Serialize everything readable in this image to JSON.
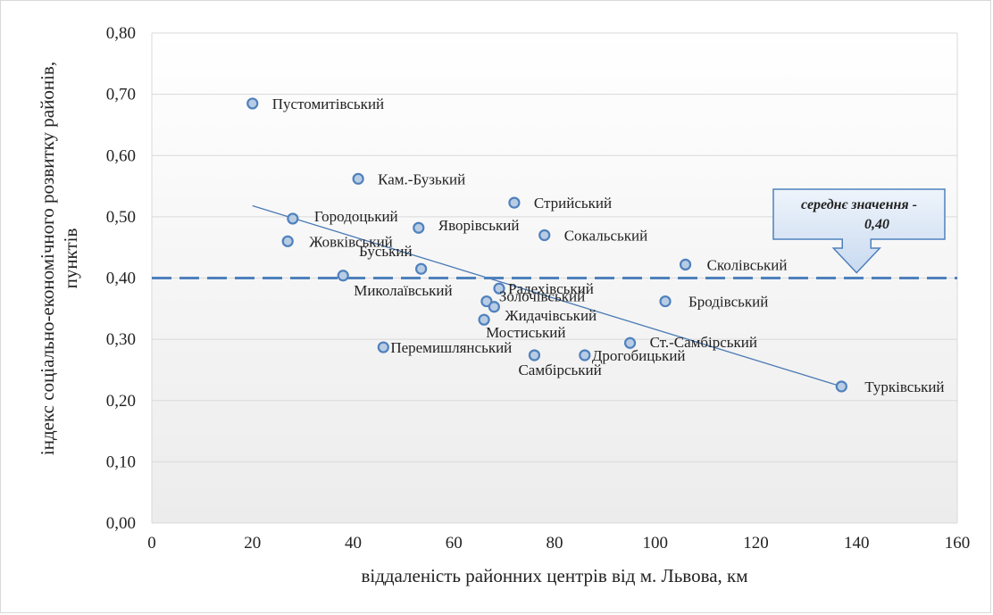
{
  "chart_data": {
    "type": "scatter",
    "xlabel": "віддаленість районних центрів від м. Львова, км",
    "ylabel_line1": "індекс соціально-економічного розвитку районів,",
    "ylabel_line2": "пунктів",
    "xlim": [
      0,
      160
    ],
    "ylim": [
      0,
      0.8
    ],
    "x_ticks": [
      "0",
      "20",
      "40",
      "60",
      "80",
      "100",
      "120",
      "140",
      "160"
    ],
    "y_ticks": [
      "0,00",
      "0,10",
      "0,20",
      "0,30",
      "0,40",
      "0,50",
      "0,60",
      "0,70",
      "0,80"
    ],
    "grid": "horizontal",
    "mean_line": {
      "value": 0.4,
      "label_line1": "середнє значення -",
      "label_line2": "0,40"
    },
    "trendline": {
      "from": [
        20,
        0.518
      ],
      "to": [
        137,
        0.223
      ]
    },
    "colors": {
      "point_fill": "#b8cce4",
      "point_stroke": "#4f81bd",
      "mean_line": "#4f81bd",
      "trend_line": "#4a7ab5",
      "callout_fill": "#dbe7f5"
    },
    "points": [
      {
        "name": "Пустомитівський",
        "x": 20,
        "y": 0.685
      },
      {
        "name": "Кам.-Бузький",
        "x": 41,
        "y": 0.562
      },
      {
        "name": "Стрийський",
        "x": 72,
        "y": 0.523
      },
      {
        "name": "Городоцький",
        "x": 28,
        "y": 0.497
      },
      {
        "name": "Яворівський",
        "x": 53,
        "y": 0.482
      },
      {
        "name": "Сокальський",
        "x": 78,
        "y": 0.47
      },
      {
        "name": "Жовківський",
        "x": 27,
        "y": 0.46
      },
      {
        "name": "Сколівський",
        "x": 106,
        "y": 0.422
      },
      {
        "name": "Буський",
        "x": 53.5,
        "y": 0.415
      },
      {
        "name": "Миколаївський",
        "x": 38,
        "y": 0.404
      },
      {
        "name": "Радехівський",
        "x": 69,
        "y": 0.383
      },
      {
        "name": "Бродівський",
        "x": 102,
        "y": 0.362
      },
      {
        "name": "Золочівський",
        "x": 66.5,
        "y": 0.362
      },
      {
        "name": "Жидачівський",
        "x": 68,
        "y": 0.353
      },
      {
        "name": "Мостиський",
        "x": 66,
        "y": 0.332
      },
      {
        "name": "Ст.-Самбірський",
        "x": 95,
        "y": 0.294
      },
      {
        "name": "Перемишлянський",
        "x": 46,
        "y": 0.287
      },
      {
        "name": "Самбірський",
        "x": 76,
        "y": 0.274
      },
      {
        "name": "Дрогобицький",
        "x": 86,
        "y": 0.274
      },
      {
        "name": "Турківський",
        "x": 137,
        "y": 0.223
      }
    ]
  }
}
